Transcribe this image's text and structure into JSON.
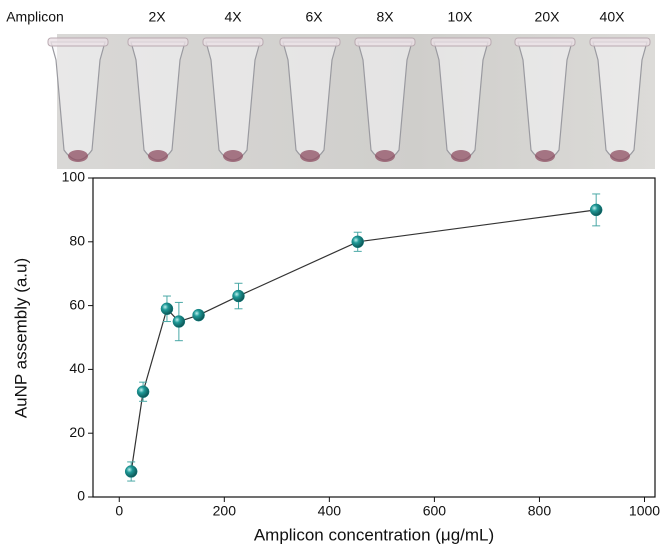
{
  "photo_labels": [
    "Amplicon",
    "2X",
    "4X",
    "6X",
    "8X",
    "10X",
    "20X",
    "40X"
  ],
  "chart_data": {
    "type": "scatter",
    "x_label": "Amplicon concentration (μg/mL)",
    "y_label": "AuNP assembly (a.u)",
    "x": [
      22.7,
      45.4,
      90.8,
      113.5,
      151,
      227,
      454,
      908
    ],
    "series": [
      {
        "color": "#138383",
        "values": [
          8,
          33,
          59,
          55,
          57,
          63,
          80,
          90
        ],
        "errors": [
          3,
          3,
          4,
          6,
          1,
          4,
          3,
          5
        ]
      }
    ],
    "xlim": [
      -50,
      1020
    ],
    "xticks": [
      0,
      200,
      400,
      600,
      800,
      1000
    ],
    "ylim": [
      0,
      100
    ],
    "yticks": [
      0,
      20,
      40,
      60,
      80,
      100
    ],
    "connect": true
  }
}
